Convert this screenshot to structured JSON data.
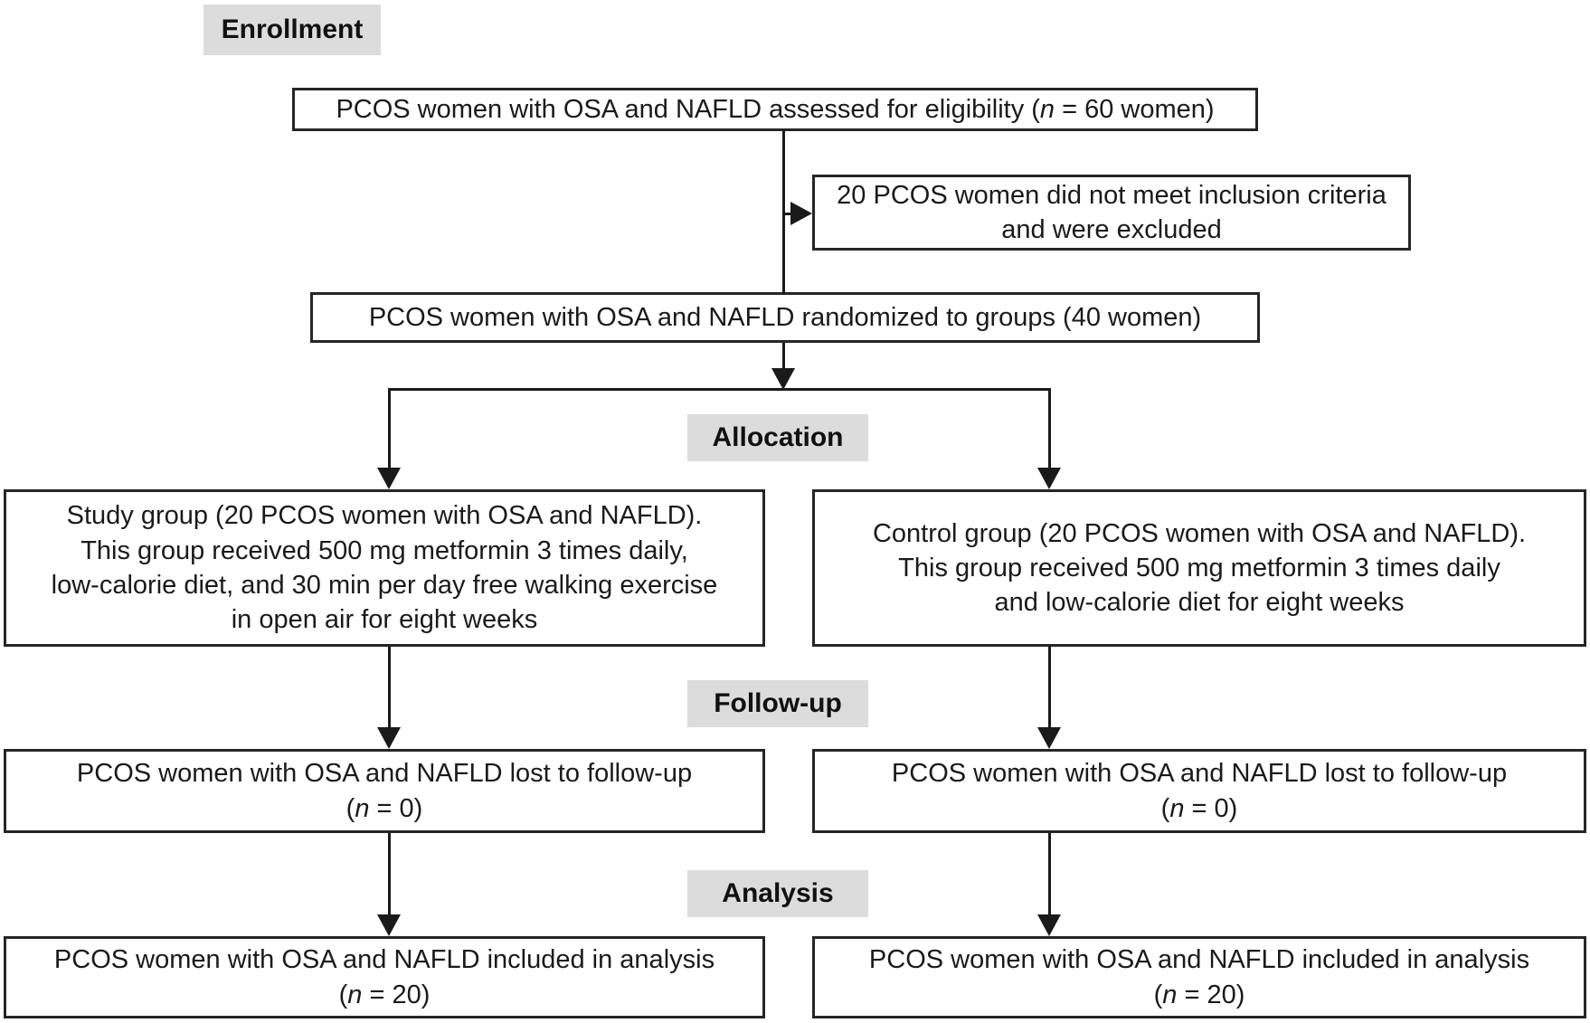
{
  "theme": {
    "background": "#ffffff",
    "box_border": "#262626",
    "text": "#1a1a1a",
    "label_background": "#dcdcdc",
    "connector": "#1a1a1a"
  },
  "stage_labels": {
    "enrollment": "Enrollment",
    "allocation": "Allocation",
    "follow_up": "Follow-up",
    "analysis": "Analysis"
  },
  "boxes": {
    "eligibility": {
      "pre": "PCOS women with OSA and NAFLD assessed for eligibility (",
      "n": "n",
      "post": " = 60 women)"
    },
    "excluded": {
      "line1": "20 PCOS women did not meet inclusion criteria",
      "line2": "and were excluded"
    },
    "randomized": {
      "text": "PCOS women with OSA and NAFLD randomized to groups (40 women)"
    },
    "study_group": {
      "lines": [
        "Study group (20 PCOS women with OSA and NAFLD).",
        "This group received 500 mg metformin 3 times daily,",
        "low-calorie diet, and 30 min per day free walking exercise",
        "in open air for eight weeks"
      ]
    },
    "control_group": {
      "lines": [
        "Control group (20 PCOS women with OSA and NAFLD).",
        "This group received 500 mg metformin 3 times daily",
        "and low-calorie diet for eight weeks"
      ]
    },
    "lost_followup_left": {
      "line1": "PCOS women with OSA and NAFLD lost to follow-up",
      "pre": "(",
      "n": "n",
      "post": " = 0)"
    },
    "lost_followup_right": {
      "line1": "PCOS women with OSA and NAFLD lost to follow-up",
      "pre": "(",
      "n": "n",
      "post": " = 0)"
    },
    "included_analysis_left": {
      "line1": "PCOS women with OSA and NAFLD included in analysis",
      "pre": "(",
      "n": "n",
      "post": " = 20)"
    },
    "included_analysis_right": {
      "line1": "PCOS women with OSA and NAFLD included in analysis",
      "pre": "(",
      "n": "n",
      "post": " = 20)"
    }
  }
}
